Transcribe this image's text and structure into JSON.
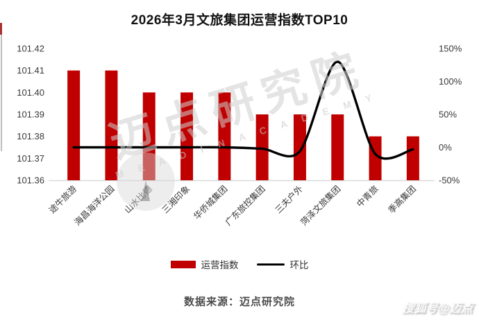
{
  "page": {
    "title": "2026年3月文旅集团运营指数TOP10",
    "source_note": "数据来源：迈点研究院",
    "corner_watermark": "搜狐号@迈点",
    "center_watermark_cn": "迈点研究院",
    "center_watermark_en": "M E A D I N  A C A D E M Y"
  },
  "colors": {
    "bar": "#c00000",
    "line": "#000000",
    "axis_text": "#383838",
    "baseline": "#d9d9d9",
    "title_text": "#111111",
    "source_text": "#4d4d4d"
  },
  "legend": {
    "bar_label": "运营指数",
    "line_label": "环比"
  },
  "chart_data": {
    "type": "bar",
    "combo": "bar+line",
    "title": "2026年3月文旅集团运营指数TOP10",
    "categories": [
      "途牛旅游",
      "海昌海洋公园",
      "山水比德",
      "三湘印象",
      "华侨城集团",
      "广东旅控集团",
      "三夫户外",
      "菏泽文旅集团",
      "中青旅",
      "季高集团"
    ],
    "series": [
      {
        "name": "运营指数",
        "type": "bar",
        "axis": "left",
        "values": [
          101.41,
          101.41,
          101.4,
          101.4,
          101.4,
          101.39,
          101.39,
          101.39,
          101.38,
          101.38
        ]
      },
      {
        "name": "环比",
        "type": "line",
        "axis": "right",
        "unit": "%",
        "values": [
          0,
          0,
          0,
          0,
          0,
          -2,
          -6,
          130,
          -10,
          -3
        ]
      }
    ],
    "left_axis": {
      "min": 101.36,
      "max": 101.42,
      "tick_step": 0.01,
      "tick_labels": [
        "101.36",
        "101.37",
        "101.38",
        "101.39",
        "101.40",
        "101.41",
        "101.42"
      ]
    },
    "right_axis": {
      "min": -50,
      "max": 150,
      "tick_step": 50,
      "tick_labels": [
        "-50%",
        "0%",
        "50%",
        "100%",
        "150%"
      ]
    },
    "grid": false,
    "legend_position": "bottom"
  }
}
